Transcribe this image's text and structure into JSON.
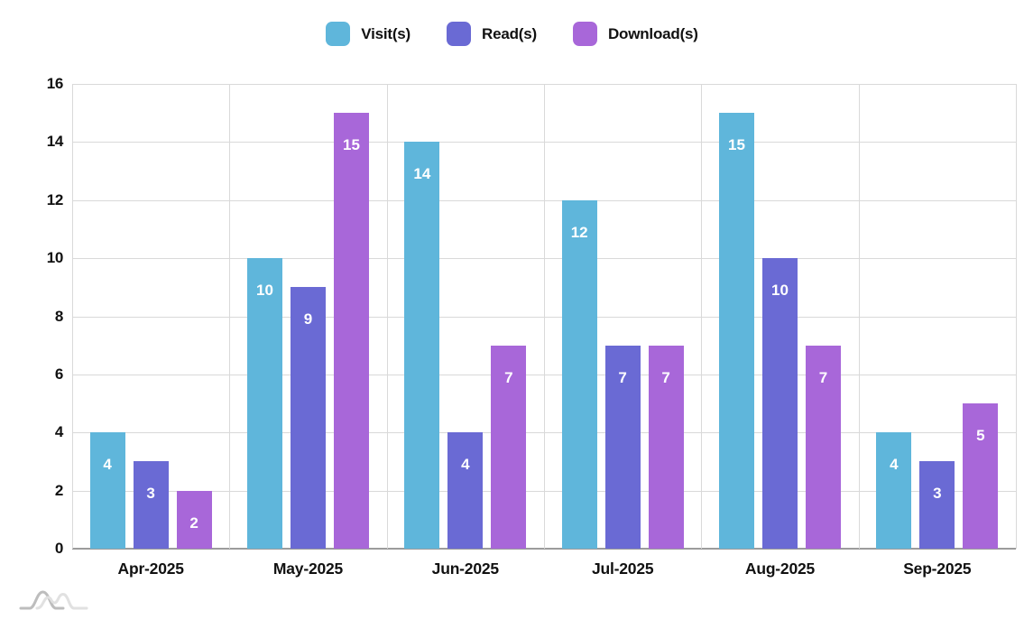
{
  "legend": {
    "items": [
      {
        "label": "Visit(s)",
        "color": "#5FB6DB"
      },
      {
        "label": "Read(s)",
        "color": "#6A6AD4"
      },
      {
        "label": "Download(s)",
        "color": "#A867D9"
      }
    ]
  },
  "chart_data": {
    "type": "bar",
    "title": "",
    "categories": [
      "Apr-2025",
      "May-2025",
      "Jun-2025",
      "Jul-2025",
      "Aug-2025",
      "Sep-2025"
    ],
    "series": [
      {
        "name": "Visit(s)",
        "color": "#5FB6DB",
        "values": [
          4,
          10,
          14,
          12,
          15,
          4
        ]
      },
      {
        "name": "Read(s)",
        "color": "#6A6AD4",
        "values": [
          3,
          9,
          4,
          7,
          10,
          3
        ]
      },
      {
        "name": "Download(s)",
        "color": "#A867D9",
        "values": [
          2,
          15,
          7,
          7,
          7,
          5
        ]
      }
    ],
    "xlabel": "",
    "ylabel": "",
    "ylim": [
      0,
      16
    ],
    "yticks": [
      0,
      2,
      4,
      6,
      8,
      10,
      12,
      14,
      16
    ],
    "grid": "horizontal lines + vertical group separators",
    "legend_position": "top-center",
    "value_labels": "white, inside bar near top",
    "gridline_color": "#d9d9d9",
    "axis_line_color": "#9b9b9b"
  },
  "footer": {
    "logo_name": "chart-watermark-waves-logo"
  }
}
